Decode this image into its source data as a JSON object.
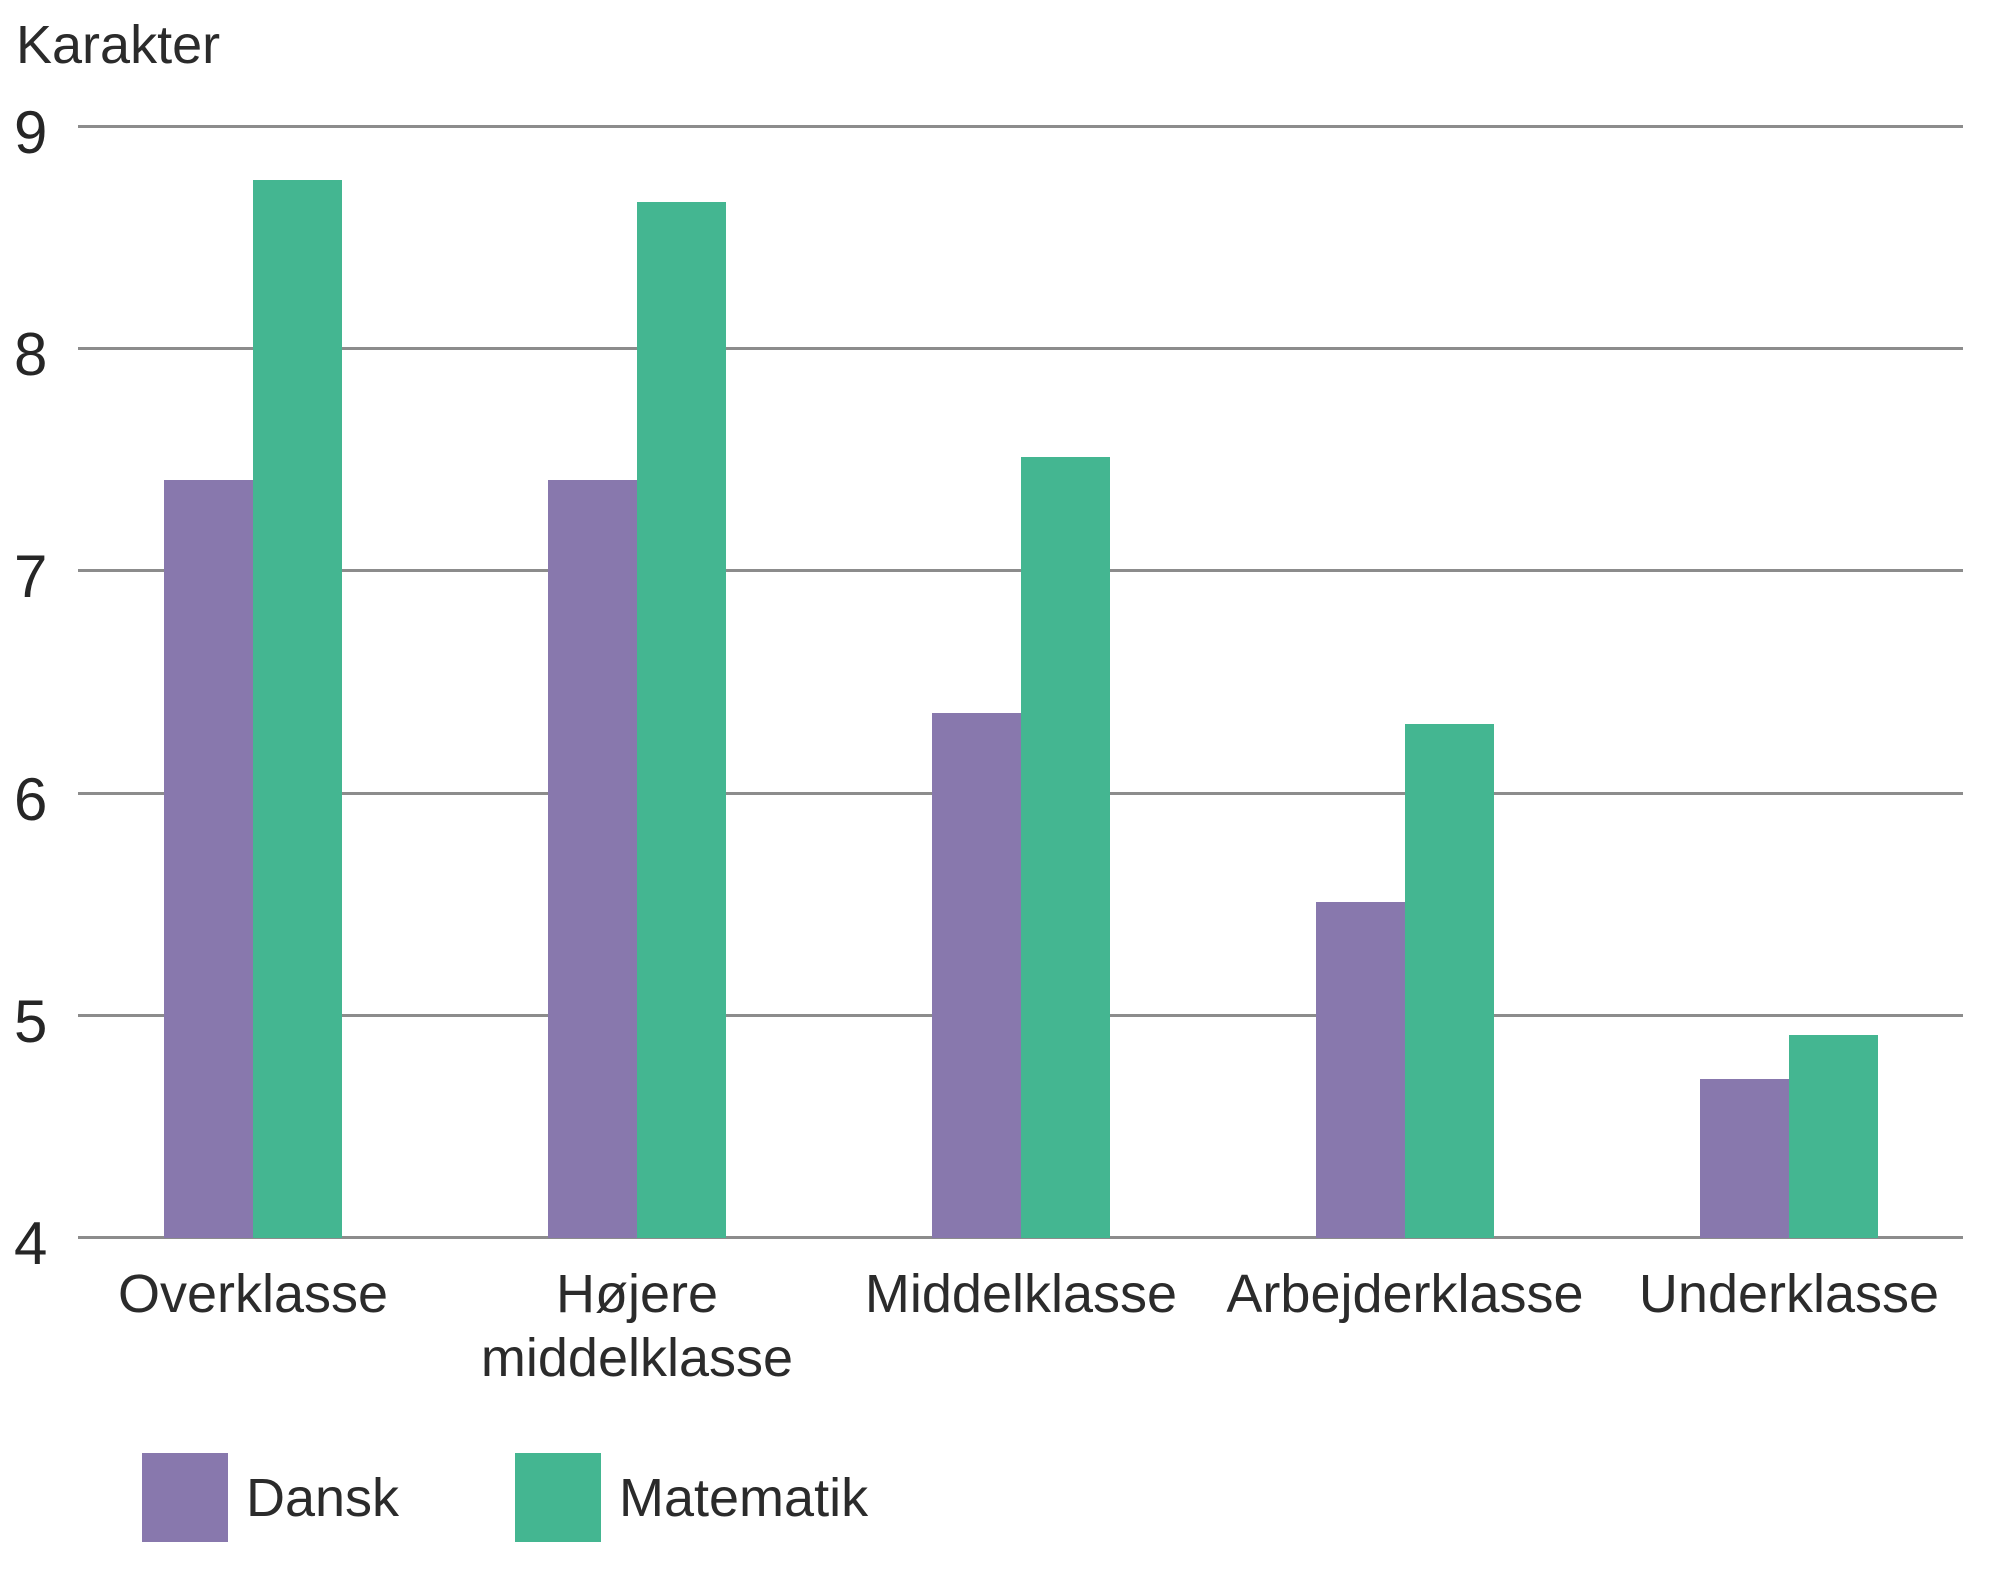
{
  "title": "Karakter",
  "chart_data": {
    "type": "bar",
    "title": "Karakter",
    "categories": [
      "Overklasse",
      "Højere middelklasse",
      "Middelklasse",
      "Arbejderklasse",
      "Underklasse"
    ],
    "series": [
      {
        "name": "Dansk",
        "color": "#8878ad",
        "values": [
          7.4,
          7.4,
          6.35,
          5.5,
          4.7
        ]
      },
      {
        "name": "Matematik",
        "color": "#44b691",
        "values": [
          8.75,
          8.65,
          7.5,
          6.3,
          4.9
        ]
      }
    ],
    "ylabel": "Karakter",
    "ylim": [
      4,
      9
    ],
    "yticks": [
      9,
      8,
      7,
      6,
      5,
      4
    ],
    "grid": true,
    "gridline_color": "#8c8c8c",
    "text_color": "#2b2b2b",
    "background_color": "#ffffff",
    "legend_position": "bottom-left"
  },
  "legend": {
    "items": [
      {
        "label": "Dansk",
        "color": "#8878ad"
      },
      {
        "label": "Matematik",
        "color": "#44b691"
      }
    ]
  }
}
